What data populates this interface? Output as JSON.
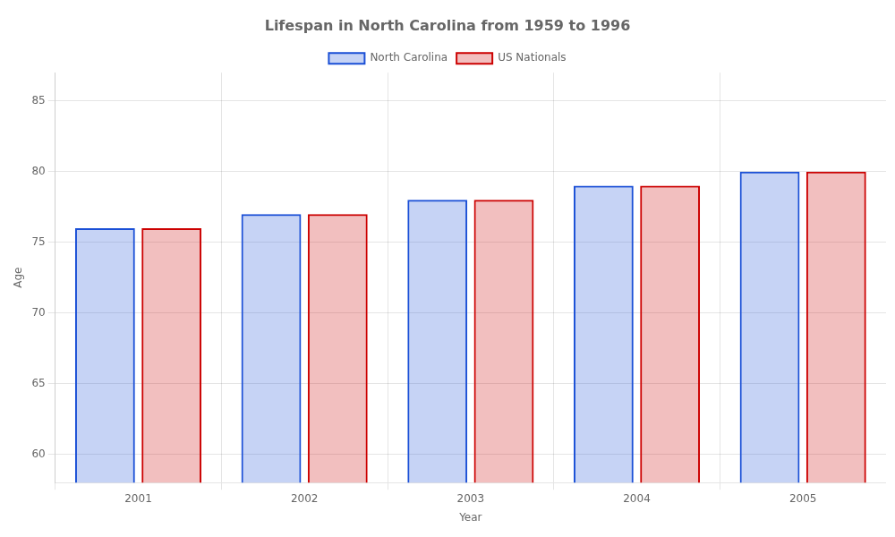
{
  "chart_data": {
    "type": "bar",
    "title": "Lifespan in North Carolina from 1959 to 1996",
    "xlabel": "Year",
    "ylabel": "Age",
    "categories": [
      "2001",
      "2002",
      "2003",
      "2004",
      "2005"
    ],
    "series": [
      {
        "name": "North Carolina",
        "color": "#1a4fd6",
        "values": [
          76,
          77,
          78,
          79,
          80
        ]
      },
      {
        "name": "US Nationals",
        "color": "#cc0000",
        "values": [
          76,
          77,
          78,
          79,
          80
        ]
      }
    ],
    "ylim": [
      58,
      87
    ],
    "yticks": [
      60,
      65,
      70,
      75,
      80,
      85
    ],
    "grid": true,
    "legend": "top"
  }
}
